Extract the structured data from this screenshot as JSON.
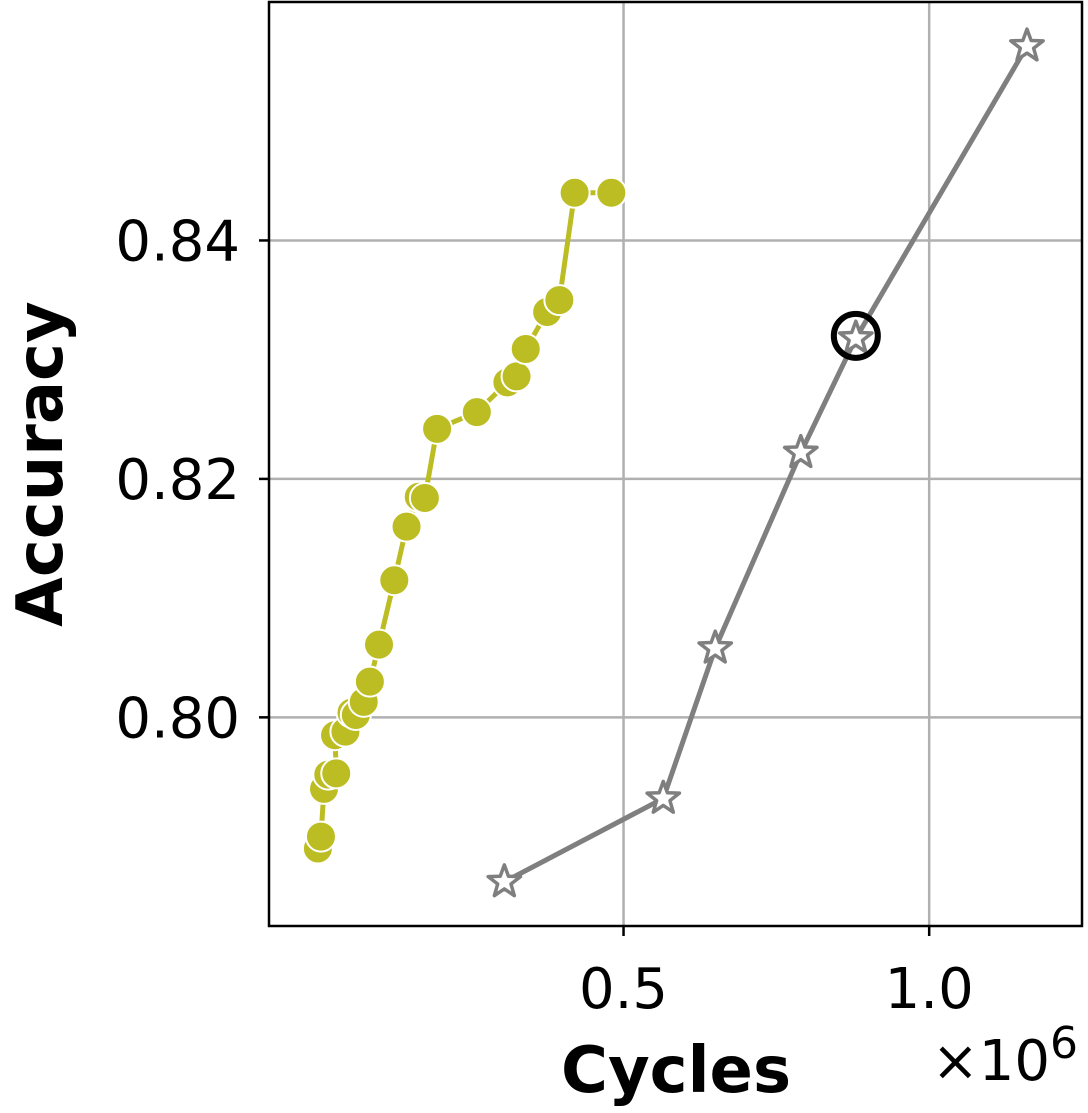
{
  "chart_data": {
    "type": "line",
    "title": "",
    "xlabel": "Cycles",
    "ylabel": "Accuracy",
    "x_offset_text": "×10^6",
    "xlim": [
      -0.08,
      1.25
    ],
    "ylim": [
      0.7825,
      0.86
    ],
    "xticks": [
      0.5,
      1.0
    ],
    "xtick_labels": [
      "0.5",
      "1.0"
    ],
    "yticks": [
      0.8,
      0.82,
      0.84
    ],
    "ytick_labels": [
      "0.80",
      "0.82",
      "0.84"
    ],
    "grid": true,
    "series": [
      {
        "color": "#bcbd22",
        "marker": "circle",
        "x": [
          0.0,
          0.005,
          0.01,
          0.017,
          0.03,
          0.028,
          0.045,
          0.055,
          0.062,
          0.075,
          0.085,
          0.1,
          0.125,
          0.145,
          0.165,
          0.175,
          0.195,
          0.26,
          0.31,
          0.325,
          0.34,
          0.375,
          0.395,
          0.42,
          0.48
        ],
        "y": [
          0.789,
          0.79,
          0.794,
          0.7952,
          0.7953,
          0.7985,
          0.7988,
          0.8004,
          0.8002,
          0.8013,
          0.803,
          0.8061,
          0.8115,
          0.816,
          0.8185,
          0.8184,
          0.8242,
          0.8256,
          0.8281,
          0.8286,
          0.8309,
          0.834,
          0.835,
          0.844,
          0.844
        ]
      },
      {
        "color": "#7f7f7f",
        "marker": "star",
        "x": [
          0.305,
          0.565,
          0.65,
          0.79,
          0.88,
          1.16
        ],
        "y": [
          0.7862,
          0.7932,
          0.8058,
          0.8222,
          0.8318,
          0.8563
        ]
      }
    ],
    "highlight": {
      "x": 0.88,
      "y": 0.832,
      "marker": "open-circle",
      "color": "#000000"
    }
  }
}
